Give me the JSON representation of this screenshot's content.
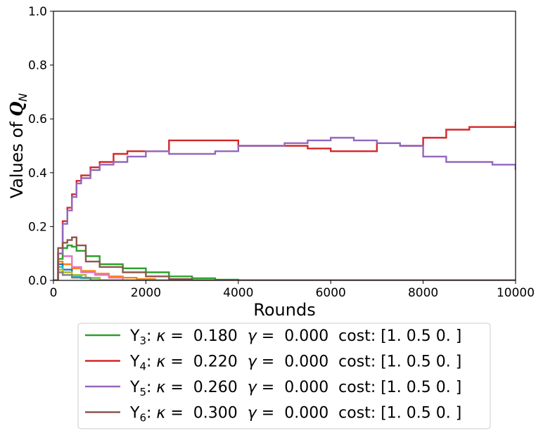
{
  "chart_data": {
    "type": "line",
    "title": "",
    "xlabel": "Rounds",
    "ylabel_prefix": "Values of ",
    "ylabel_symbol": "Q",
    "ylabel_sub": "N",
    "xlim": [
      0,
      10000
    ],
    "ylim": [
      0.0,
      1.0
    ],
    "xticks": [
      0,
      2000,
      4000,
      6000,
      8000,
      10000
    ],
    "yticks": [
      0.0,
      0.2,
      0.4,
      0.6,
      0.8,
      1.0
    ],
    "xtick_labels": [
      "0",
      "2000",
      "4000",
      "6000",
      "8000",
      "10000"
    ],
    "ytick_labels": [
      "0.0",
      "0.2",
      "0.4",
      "0.6",
      "0.8",
      "1.0"
    ],
    "grid": false,
    "legend_position": "below",
    "series": [
      {
        "name": "Y3",
        "legend": {
          "var": "Y",
          "sub": "3",
          "kappa": "0.180",
          "gamma": "0.000",
          "cost": "[1.  0.5 0. ]"
        },
        "color": "#2ca02c",
        "x": [
          0,
          100,
          200,
          300,
          400,
          500,
          700,
          1000,
          1500,
          2000,
          2500,
          3000,
          3500,
          4000,
          10000
        ],
        "y": [
          0.0,
          0.08,
          0.12,
          0.13,
          0.125,
          0.11,
          0.09,
          0.06,
          0.045,
          0.03,
          0.015,
          0.008,
          0.003,
          0.0,
          0.0
        ]
      },
      {
        "name": "Y4",
        "legend": {
          "var": "Y",
          "sub": "4",
          "kappa": "0.220",
          "gamma": "0.000",
          "cost": "[1.  0.5 0. ]"
        },
        "color": "#d62728",
        "x": [
          0,
          100,
          200,
          300,
          400,
          500,
          600,
          800,
          1000,
          1300,
          1600,
          2000,
          2500,
          3000,
          3500,
          4000,
          4500,
          5000,
          5500,
          6000,
          6500,
          7000,
          7500,
          8000,
          8500,
          9000,
          9500,
          10000
        ],
        "y": [
          0.0,
          0.1,
          0.22,
          0.27,
          0.32,
          0.37,
          0.39,
          0.42,
          0.44,
          0.47,
          0.48,
          0.48,
          0.52,
          0.52,
          0.52,
          0.5,
          0.5,
          0.5,
          0.49,
          0.48,
          0.48,
          0.51,
          0.5,
          0.53,
          0.56,
          0.57,
          0.57,
          0.59
        ]
      },
      {
        "name": "Y5",
        "legend": {
          "var": "Y",
          "sub": "5",
          "kappa": "0.260",
          "gamma": "0.000",
          "cost": "[1.  0.5 0. ]"
        },
        "color": "#9467bd",
        "x": [
          0,
          100,
          200,
          300,
          400,
          500,
          600,
          800,
          1000,
          1300,
          1600,
          2000,
          2500,
          3000,
          3500,
          4000,
          4500,
          5000,
          5500,
          6000,
          6500,
          7000,
          7500,
          8000,
          8500,
          9000,
          9500,
          10000
        ],
        "y": [
          0.0,
          0.1,
          0.21,
          0.26,
          0.31,
          0.36,
          0.38,
          0.41,
          0.43,
          0.44,
          0.46,
          0.48,
          0.47,
          0.47,
          0.48,
          0.5,
          0.5,
          0.51,
          0.52,
          0.53,
          0.52,
          0.51,
          0.5,
          0.46,
          0.44,
          0.44,
          0.43,
          0.41
        ]
      },
      {
        "name": "Y6",
        "legend": {
          "var": "Y",
          "sub": "6",
          "kappa": "0.300",
          "gamma": "0.000",
          "cost": "[1.  0.5 0. ]"
        },
        "color": "#8c564b",
        "x": [
          0,
          100,
          200,
          300,
          400,
          500,
          700,
          1000,
          1500,
          2000,
          2500,
          3000,
          10000
        ],
        "y": [
          0.0,
          0.12,
          0.14,
          0.15,
          0.16,
          0.13,
          0.07,
          0.05,
          0.03,
          0.015,
          0.005,
          0.0,
          0.0
        ]
      },
      {
        "color": "#ff7f0e",
        "x": [
          0,
          100,
          200,
          400,
          600,
          900,
          1200,
          1500,
          1800,
          2200,
          10000
        ],
        "y": [
          0.0,
          0.07,
          0.06,
          0.045,
          0.035,
          0.025,
          0.015,
          0.01,
          0.005,
          0.0,
          0.0
        ]
      },
      {
        "color": "#e377c2",
        "x": [
          0,
          100,
          200,
          400,
          600,
          900,
          1200,
          1500,
          10000
        ],
        "y": [
          0.0,
          0.1,
          0.09,
          0.05,
          0.03,
          0.02,
          0.01,
          0.0,
          0.0
        ]
      },
      {
        "color": "#1f77b4",
        "x": [
          0,
          100,
          200,
          400,
          700,
          1000,
          10000
        ],
        "y": [
          0.0,
          0.06,
          0.04,
          0.02,
          0.01,
          0.0,
          0.0
        ]
      },
      {
        "color": "#17becf",
        "x": [
          0,
          100,
          200,
          400,
          600,
          1000,
          10000
        ],
        "y": [
          0.0,
          0.05,
          0.03,
          0.015,
          0.008,
          0.0,
          0.0
        ]
      },
      {
        "color": "#bcbd22",
        "x": [
          0,
          100,
          200,
          400,
          700,
          1000,
          10000
        ],
        "y": [
          0.0,
          0.04,
          0.03,
          0.02,
          0.01,
          0.0,
          0.0
        ]
      },
      {
        "color": "#7f7f7f",
        "x": [
          0,
          100,
          200,
          400,
          800,
          10000
        ],
        "y": [
          0.0,
          0.03,
          0.02,
          0.01,
          0.0,
          0.0
        ]
      }
    ]
  }
}
